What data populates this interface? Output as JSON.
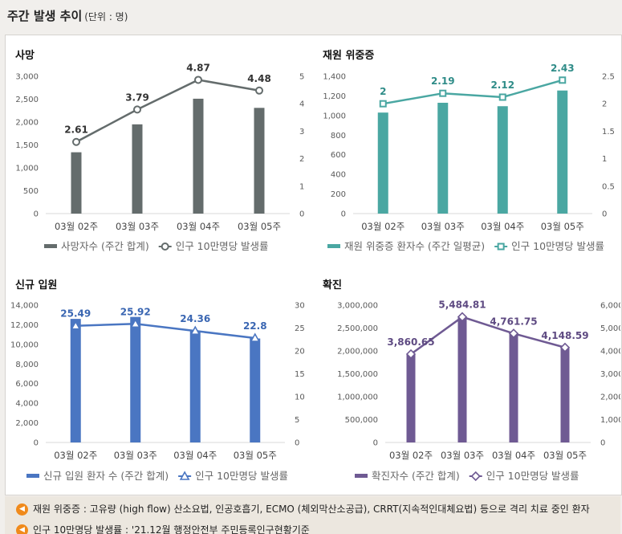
{
  "page": {
    "title": "주간 발생 추이",
    "unit": "(단위 : 명)"
  },
  "chart_data": [
    {
      "type": "bar",
      "title": "사망",
      "categories": [
        "03월 02주",
        "03월 03주",
        "03월 04주",
        "03월 05주"
      ],
      "series": [
        {
          "name": "사망자수 (주간 합계)",
          "kind": "bar",
          "axis": "left",
          "values": [
            1340,
            1950,
            2510,
            2310
          ]
        },
        {
          "name": "인구 10만명당 발생률",
          "kind": "line",
          "axis": "right",
          "marker": "circle",
          "values": [
            2.61,
            3.79,
            4.87,
            4.48
          ]
        }
      ],
      "y_left": {
        "min": 0,
        "max": 3000,
        "ticks": [
          "0",
          "500",
          "1,000",
          "1,500",
          "2,000",
          "2,500",
          "3,000"
        ]
      },
      "y_right": {
        "min": 0,
        "max": 5,
        "ticks": [
          "0",
          "1",
          "2",
          "3",
          "4",
          "5"
        ]
      },
      "data_labels": [
        "2.61",
        "3.79",
        "4.87",
        "4.48"
      ],
      "colors": {
        "bar": "#646c6c",
        "line": "#646c6c",
        "label": "#333333"
      }
    },
    {
      "type": "bar",
      "title": "재원 위중증",
      "categories": [
        "03월 02주",
        "03월 03주",
        "03월 04주",
        "03월 05주"
      ],
      "series": [
        {
          "name": "재원 위중증 환자수 (주간 일평균)",
          "kind": "bar",
          "axis": "left",
          "values": [
            1030,
            1130,
            1095,
            1255
          ]
        },
        {
          "name": "인구 10만명당 발생률",
          "kind": "line",
          "axis": "right",
          "marker": "square",
          "values": [
            2.0,
            2.19,
            2.12,
            2.43
          ]
        }
      ],
      "y_left": {
        "min": 0,
        "max": 1400,
        "ticks": [
          "0",
          "200",
          "400",
          "600",
          "800",
          "1,000",
          "1,200",
          "1,400"
        ]
      },
      "y_right": {
        "min": 0,
        "max": 2.5,
        "ticks": [
          "0",
          "0.5",
          "1",
          "1.5",
          "2",
          "2.5"
        ]
      },
      "data_labels": [
        "2",
        "2.19",
        "2.12",
        "2.43"
      ],
      "colors": {
        "bar": "#4aa7a2",
        "line": "#4aa7a2",
        "label": "#2f8c88"
      }
    },
    {
      "type": "bar",
      "title": "신규 입원",
      "categories": [
        "03월 02주",
        "03월 03주",
        "03월 04주",
        "03월 05주"
      ],
      "series": [
        {
          "name": "신규 입원 환자 수 (주간 합계)",
          "kind": "bar",
          "axis": "left",
          "values": [
            12600,
            12800,
            11400,
            10600
          ]
        },
        {
          "name": "인구 10만명당 발생률",
          "kind": "line",
          "axis": "right",
          "marker": "triangle",
          "values": [
            25.49,
            25.92,
            24.36,
            22.8
          ]
        }
      ],
      "y_left": {
        "min": 0,
        "max": 14000,
        "ticks": [
          "0",
          "2,000",
          "4,000",
          "6,000",
          "8,000",
          "10,000",
          "12,000",
          "14,000"
        ]
      },
      "y_right": {
        "min": 0,
        "max": 30,
        "ticks": [
          "0",
          "5",
          "10",
          "15",
          "20",
          "25",
          "30"
        ]
      },
      "data_labels": [
        "25.49",
        "25.92",
        "24.36",
        "22.8"
      ],
      "colors": {
        "bar": "#4a76c2",
        "line": "#4a76c2",
        "label": "#3a66b2"
      }
    },
    {
      "type": "bar",
      "title": "확진",
      "categories": [
        "03월 02주",
        "03월 03주",
        "03월 04주",
        "03월 05주"
      ],
      "series": [
        {
          "name": "확진자수 (주간 합계)",
          "kind": "bar",
          "axis": "left",
          "values": [
            1920000,
            2740000,
            2380000,
            2070000
          ]
        },
        {
          "name": "인구 10만명당 발생률",
          "kind": "line",
          "axis": "right",
          "marker": "diamond",
          "values": [
            3860.65,
            5484.81,
            4761.75,
            4148.59
          ]
        }
      ],
      "y_left": {
        "min": 0,
        "max": 3000000,
        "ticks": [
          "0",
          "500,000",
          "1,000,000",
          "1,500,000",
          "2,000,000",
          "2,500,000",
          "3,000,000"
        ]
      },
      "y_right": {
        "min": 0,
        "max": 6000,
        "ticks": [
          "0",
          "1,000",
          "2,000",
          "3,000",
          "4,000",
          "5,000",
          "6,000"
        ]
      },
      "data_labels": [
        "3,860.65",
        "5,484.81",
        "4,761.75",
        "4,148.59"
      ],
      "colors": {
        "bar": "#6f5a93",
        "line": "#6f5a93",
        "label": "#5e4a82"
      }
    }
  ],
  "notes": [
    {
      "icon": "speaker-icon",
      "text": "재원 위중증 : 고유량 (high flow) 산소요법, 인공호흡기, ECMO (체외막산소공급), CRRT(지속적인대체요법) 등으로 격리 치료 중인 환자"
    },
    {
      "icon": "speaker-icon",
      "text": "인구 10만명당 발생률 : '21.12월 행정안전부 주민등록인구현황기준"
    }
  ]
}
